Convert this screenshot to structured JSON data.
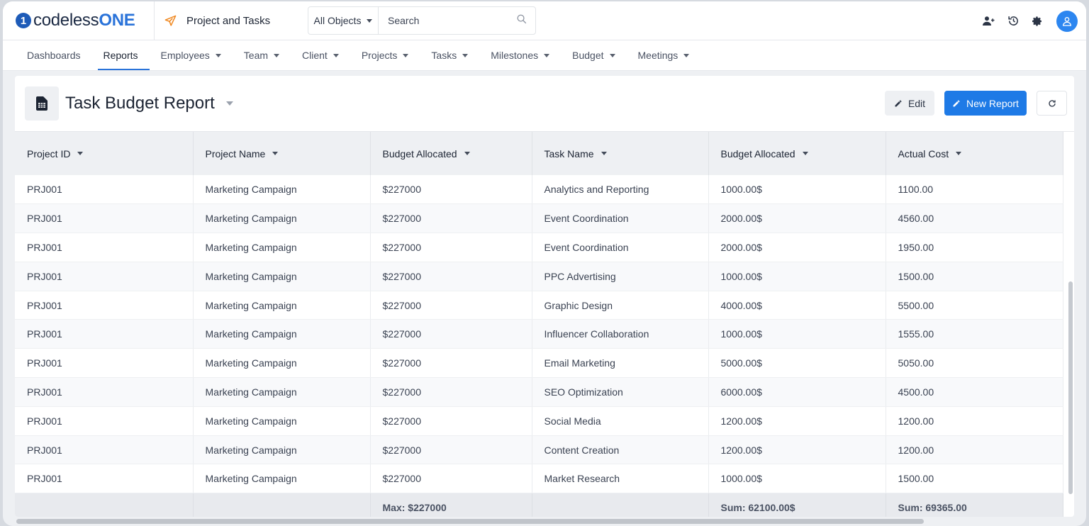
{
  "brand": {
    "logo_mark": "1",
    "logo_prefix": "codeless",
    "logo_suffix": "ONE"
  },
  "app": {
    "title": "Project and Tasks"
  },
  "search": {
    "scope": "All Objects",
    "placeholder": "Search"
  },
  "top_icons": [
    "add-user-icon",
    "history-icon",
    "settings-icon",
    "user-avatar-icon"
  ],
  "nav": {
    "items": [
      {
        "label": "Dashboards",
        "dropdown": false
      },
      {
        "label": "Reports",
        "dropdown": false,
        "active": true
      },
      {
        "label": "Employees",
        "dropdown": true
      },
      {
        "label": "Team",
        "dropdown": true
      },
      {
        "label": "Client",
        "dropdown": true
      },
      {
        "label": "Projects",
        "dropdown": true
      },
      {
        "label": "Tasks",
        "dropdown": true
      },
      {
        "label": "Milestones",
        "dropdown": true
      },
      {
        "label": "Budget",
        "dropdown": true
      },
      {
        "label": "Meetings",
        "dropdown": true
      }
    ]
  },
  "report": {
    "title": "Task Budget Report",
    "edit_label": "Edit",
    "new_label": "New Report"
  },
  "table": {
    "columns": [
      "Project ID",
      "Project Name",
      "Budget Allocated",
      "Task Name",
      "Budget Allocated",
      "Actual Cost"
    ],
    "rows": [
      [
        "PRJ001",
        "Marketing Campaign",
        "$227000",
        "Analytics and Reporting",
        "1000.00$",
        "1100.00"
      ],
      [
        "PRJ001",
        "Marketing Campaign",
        "$227000",
        "Event Coordination",
        "2000.00$",
        "4560.00"
      ],
      [
        "PRJ001",
        "Marketing Campaign",
        "$227000",
        "Event Coordination",
        "2000.00$",
        "1950.00"
      ],
      [
        "PRJ001",
        "Marketing Campaign",
        "$227000",
        "PPC Advertising",
        "1000.00$",
        "1500.00"
      ],
      [
        "PRJ001",
        "Marketing Campaign",
        "$227000",
        "Graphic Design",
        "4000.00$",
        "5500.00"
      ],
      [
        "PRJ001",
        "Marketing Campaign",
        "$227000",
        "Influencer Collaboration",
        "1000.00$",
        "1555.00"
      ],
      [
        "PRJ001",
        "Marketing Campaign",
        "$227000",
        "Email Marketing",
        "5000.00$",
        "5050.00"
      ],
      [
        "PRJ001",
        "Marketing Campaign",
        "$227000",
        "SEO Optimization",
        "6000.00$",
        "4500.00"
      ],
      [
        "PRJ001",
        "Marketing Campaign",
        "$227000",
        "Social Media",
        "1200.00$",
        "1200.00"
      ],
      [
        "PRJ001",
        "Marketing Campaign",
        "$227000",
        "Content Creation",
        "1200.00$",
        "1200.00"
      ],
      [
        "PRJ001",
        "Marketing Campaign",
        "$227000",
        "Market Research",
        "1000.00$",
        "1500.00"
      ]
    ],
    "footer": [
      "",
      "",
      "Max: $227000",
      "",
      "Sum: 62100.00$",
      "Sum: 69365.00"
    ]
  },
  "colors": {
    "accent": "#1e7ae6",
    "brand": "#2a73d9",
    "avatar": "#2c86f0",
    "plane": "#f08a24"
  }
}
